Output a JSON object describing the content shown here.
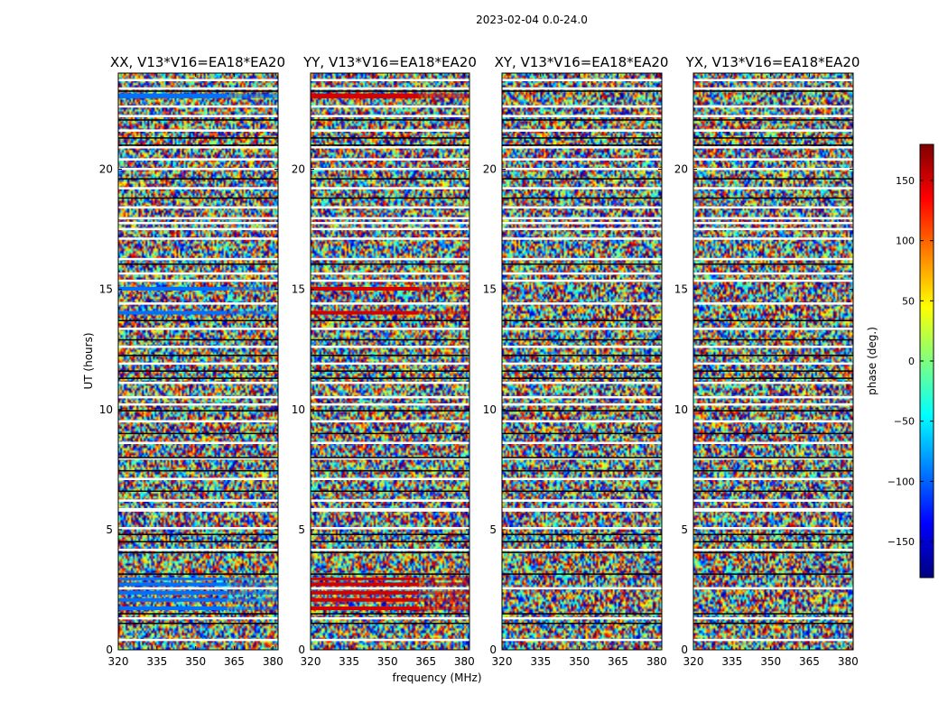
{
  "chart_data": {
    "type": "heatmap",
    "suptitle": "2023-02-04 0.0-24.0",
    "xlabel": "frequency (MHz)",
    "ylabel": "UT (hours)",
    "xlim": [
      320,
      382
    ],
    "ylim": [
      0,
      24
    ],
    "xticks": [
      320,
      335,
      350,
      365,
      380
    ],
    "yticks": [
      0,
      5,
      10,
      15,
      20
    ],
    "colorbar": {
      "label": "phase (deg.)",
      "range": [
        -180,
        180
      ],
      "ticks": [
        150,
        100,
        50,
        0,
        -50,
        -100,
        -150
      ],
      "colormap": [
        "#00007f",
        "#0000ff",
        "#007fff",
        "#00ffff",
        "#7fff7f",
        "#ffff00",
        "#ff7f00",
        "#ff0000",
        "#7f0000"
      ]
    },
    "panels": [
      {
        "title": "XX, V13*V16=EA18*EA20",
        "coherent_hours": [
          1.6,
          3.0
        ],
        "coherent_phase_deg": -95,
        "coherent_rows": [
          [
            22.95,
            23.15
          ],
          [
            14.95,
            15.1
          ],
          [
            13.95,
            14.1
          ],
          [
            1.65,
            1.8
          ],
          [
            2.0,
            2.15
          ],
          [
            2.3,
            2.45
          ],
          [
            2.65,
            2.8
          ],
          [
            2.9,
            3.0
          ]
        ]
      },
      {
        "title": "YY, V13*V16=EA18*EA20",
        "coherent_hours": [
          1.6,
          3.0
        ],
        "coherent_phase_deg": 150,
        "coherent_rows": [
          [
            22.95,
            23.15
          ],
          [
            14.95,
            15.1
          ],
          [
            13.95,
            14.1
          ],
          [
            1.65,
            1.8
          ],
          [
            2.0,
            2.15
          ],
          [
            2.3,
            2.45
          ],
          [
            2.65,
            2.8
          ],
          [
            2.9,
            3.0
          ]
        ]
      },
      {
        "title": "XY, V13*V16=EA18*EA20",
        "coherent_hours": [],
        "coherent_phase_deg": 0,
        "coherent_rows": []
      },
      {
        "title": "YX, V13*V16=EA18*EA20",
        "coherent_hours": [],
        "coherent_phase_deg": 0,
        "coherent_rows": []
      }
    ],
    "flagged_rows_hours": [
      0.4,
      1.3,
      2.55,
      4.15,
      5.05,
      5.8,
      6.2,
      7.1,
      7.95,
      8.6,
      9.5,
      10.2,
      10.5,
      11.1,
      11.9,
      12.6,
      13.35,
      14.4,
      15.35,
      15.65,
      16.25,
      17.1,
      17.5,
      17.75,
      17.95,
      18.4,
      19.2,
      20.0,
      20.4,
      20.9,
      21.6,
      22.2,
      22.6,
      23.35,
      23.7
    ],
    "black_rows_hours": [
      1.1,
      1.5,
      3.15,
      4.05,
      4.5,
      4.8,
      6.6,
      7.45,
      8.0,
      9.0,
      9.95,
      11.3,
      11.6,
      12.25,
      12.9,
      13.7,
      16.05,
      18.8,
      19.6,
      21.0,
      21.3,
      22.05,
      23.25
    ]
  }
}
